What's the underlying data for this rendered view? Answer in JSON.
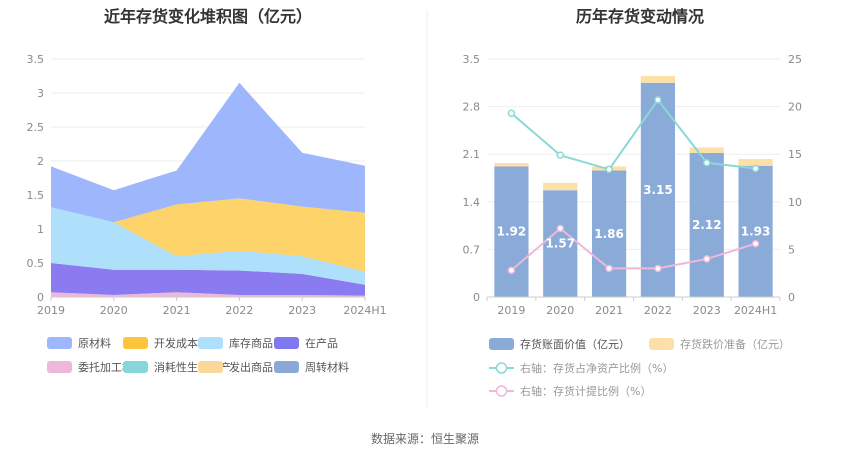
{
  "footer": {
    "source": "数据来源：恒生聚源"
  },
  "chart_data": [
    {
      "type": "area",
      "title": "近年存货变化堆积图（亿元）",
      "categories": [
        "2019",
        "2020",
        "2021",
        "2022",
        "2023",
        "2024H1"
      ],
      "ylim": [
        0,
        3.5
      ],
      "yticks": [
        "0",
        "0.5",
        "1",
        "1.5",
        "2",
        "2.5",
        "3",
        "3.5"
      ],
      "grid": true,
      "stacked": true,
      "series": [
        {
          "name": "委托加工材料",
          "color": "#f0b8d8",
          "values": [
            0.07,
            0.03,
            0.07,
            0.03,
            0.03,
            0.02
          ]
        },
        {
          "name": "在产品",
          "color": "#8a7cf0",
          "values": [
            0.43,
            0.37,
            0.33,
            0.36,
            0.31,
            0.16
          ]
        },
        {
          "name": "库存商品",
          "color": "#aee0fb",
          "values": [
            0.82,
            0.7,
            0.2,
            0.29,
            0.26,
            0.19
          ]
        },
        {
          "name": "开发成本",
          "color": "#fdd36a",
          "values": [
            0.0,
            0.0,
            0.76,
            0.77,
            0.73,
            0.87
          ]
        },
        {
          "name": "原材料",
          "color": "#9eb6fc",
          "values": [
            0.6,
            0.47,
            0.5,
            1.7,
            0.79,
            0.69
          ]
        },
        {
          "name": "消耗性生物资产",
          "color": "#87d7d9",
          "values": [
            0,
            0,
            0,
            0,
            0,
            0
          ]
        },
        {
          "name": "发出商品",
          "color": "#fcd79a",
          "values": [
            0,
            0,
            0,
            0,
            0,
            0
          ]
        },
        {
          "name": "周转材料",
          "color": "#8aa8d8",
          "values": [
            0,
            0,
            0,
            0,
            0,
            0
          ]
        }
      ],
      "legend": [
        {
          "name": "原材料",
          "color": "#9eb6fc"
        },
        {
          "name": "开发成本",
          "color": "#fdc53a"
        },
        {
          "name": "库存商品",
          "color": "#aee0fb"
        },
        {
          "name": "在产品",
          "color": "#7f78f0"
        },
        {
          "name": "委托加工材料",
          "color": "#f0b8d8"
        },
        {
          "name": "消耗性生物资产",
          "color": "#87d7d9"
        },
        {
          "name": "发出商品",
          "color": "#fcd79a"
        },
        {
          "name": "周转材料",
          "color": "#8aa8d8"
        }
      ],
      "legend_placement": "bottom"
    },
    {
      "type": "bar",
      "title": "历年存货变动情况",
      "categories": [
        "2019",
        "2020",
        "2021",
        "2022",
        "2023",
        "2024H1"
      ],
      "ylim": [
        0,
        3.5
      ],
      "yticks": [
        "0",
        "0.7",
        "1.4",
        "2.1",
        "2.8",
        "3.5"
      ],
      "y2lim": [
        0,
        25
      ],
      "y2ticks": [
        "0",
        "5",
        "10",
        "15",
        "20",
        "25"
      ],
      "grid": true,
      "series": [
        {
          "name": "存货账面价值（亿元）",
          "kind": "bar",
          "axis": "left",
          "color": "#8aaad8",
          "values": [
            1.92,
            1.57,
            1.86,
            3.15,
            2.12,
            1.93
          ],
          "labels": [
            "1.92",
            "1.57",
            "1.86",
            "3.15",
            "2.12",
            "1.93"
          ]
        },
        {
          "name": "存货跌价准备（亿元）",
          "kind": "bar-stack",
          "axis": "left",
          "color": "#fde0a8",
          "values": [
            0.05,
            0.11,
            0.06,
            0.1,
            0.08,
            0.1
          ]
        },
        {
          "name": "右轴：存货占净资产比例（%）",
          "kind": "line",
          "axis": "right",
          "color": "#8ad8d8",
          "values": [
            19.3,
            14.9,
            13.4,
            20.7,
            14.1,
            13.5
          ]
        },
        {
          "name": "右轴：存货计提比例（%）",
          "kind": "line",
          "axis": "right",
          "color": "#f0b8d8",
          "values": [
            2.8,
            7.2,
            3.0,
            3.0,
            4.0,
            5.6
          ]
        }
      ],
      "legend_placement": "bottom"
    }
  ]
}
